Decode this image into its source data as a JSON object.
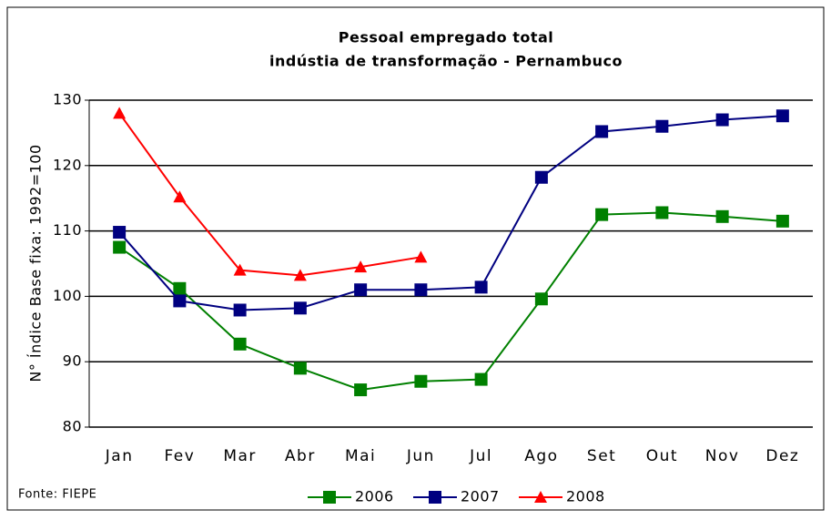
{
  "chart_data": {
    "type": "line",
    "title": "Pessoal empregado total",
    "subtitle": "indústia de transformação - Pernambuco",
    "y_label": "N° Índice Base fixa: 1992=100",
    "source": "Fonte: FIEPE",
    "categories": [
      "Jan",
      "Fev",
      "Mar",
      "Abr",
      "Mai",
      "Jun",
      "Jul",
      "Ago",
      "Set",
      "Out",
      "Nov",
      "Dez"
    ],
    "series": [
      {
        "name": "2006",
        "color": "#008000",
        "marker": "square",
        "values": [
          107.5,
          101.2,
          92.7,
          89,
          85.7,
          87,
          87.3,
          99.6,
          112.5,
          112.8,
          112.2,
          111.5
        ]
      },
      {
        "name": "2007",
        "color": "#000080",
        "marker": "square",
        "values": [
          109.8,
          99.3,
          97.9,
          98.2,
          101,
          101,
          101.4,
          118.2,
          125.2,
          126,
          127,
          127.6
        ]
      },
      {
        "name": "2008",
        "color": "#ff0000",
        "marker": "triangle",
        "values": [
          128,
          115.2,
          104,
          103.2,
          104.5,
          106,
          null,
          null,
          null,
          null,
          null,
          null
        ]
      }
    ],
    "ylim": [
      80,
      130
    ],
    "yticks": [
      80,
      90,
      100,
      110,
      120,
      130
    ],
    "grid": true,
    "legend": "bottom"
  }
}
